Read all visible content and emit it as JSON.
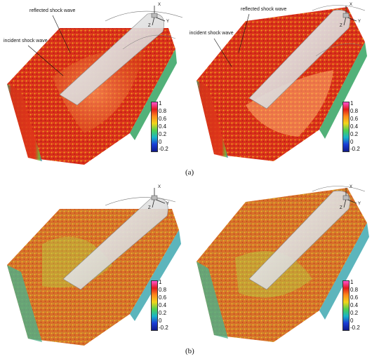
{
  "figure": {
    "colorbar": {
      "ticks": [
        "1",
        "0.8",
        "0.6",
        "0.4",
        "0.2",
        "0",
        "-0.2"
      ],
      "colors": [
        "#ff4fd0",
        "#e11a1a",
        "#ff8a1a",
        "#f2d51a",
        "#4fd04f",
        "#19b4c9",
        "#1a3cd6",
        "#101a8a"
      ]
    },
    "axes_labels": {
      "x": "X",
      "y": "Y",
      "z": "Z"
    },
    "panels": [
      {
        "annotations": [
          "reflected shock wave",
          "incident shock wave"
        ]
      },
      {
        "annotations": [
          "reflected shock wave",
          "incident shock wave"
        ]
      },
      {
        "annotations": []
      },
      {
        "annotations": []
      }
    ],
    "sublabels": {
      "a": "(a)",
      "b": "(b)"
    }
  }
}
